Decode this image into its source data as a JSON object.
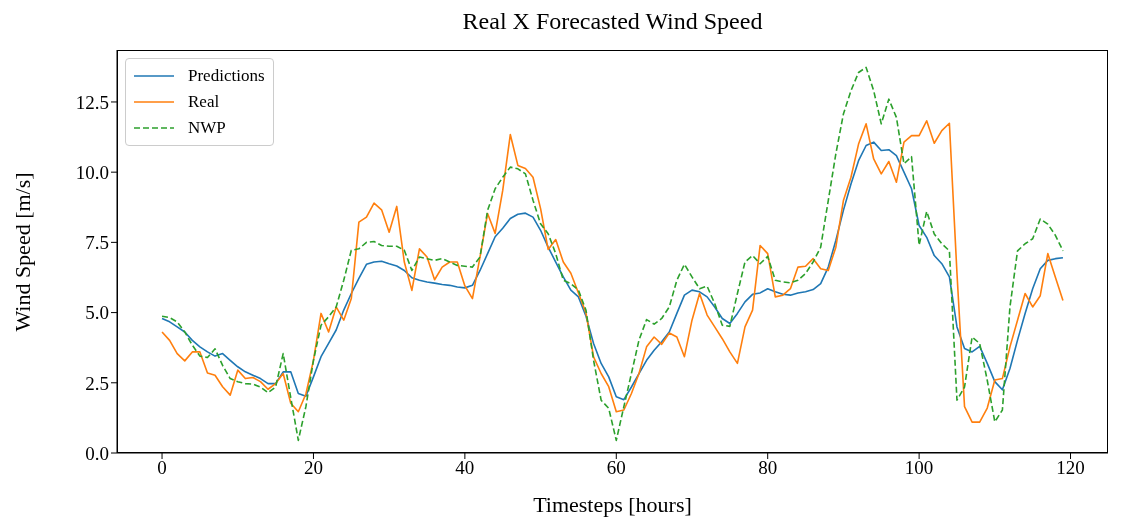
{
  "chart_data": {
    "type": "line",
    "title": "Real X Forecasted Wind Speed",
    "xlabel": "Timesteps [hours]",
    "ylabel": "Wind Speed [m/s]",
    "x": [
      0,
      1,
      2,
      3,
      4,
      5,
      6,
      7,
      8,
      9,
      10,
      11,
      12,
      13,
      14,
      15,
      16,
      17,
      18,
      19,
      20,
      21,
      22,
      23,
      24,
      25,
      26,
      27,
      28,
      29,
      30,
      31,
      32,
      33,
      34,
      35,
      36,
      37,
      38,
      39,
      40,
      41,
      42,
      43,
      44,
      45,
      46,
      47,
      48,
      49,
      50,
      51,
      52,
      53,
      54,
      55,
      56,
      57,
      58,
      59,
      60,
      61,
      62,
      63,
      64,
      65,
      66,
      67,
      68,
      69,
      70,
      71,
      72,
      73,
      74,
      75,
      76,
      77,
      78,
      79,
      80,
      81,
      82,
      83,
      84,
      85,
      86,
      87,
      88,
      89,
      90,
      91,
      92,
      93,
      94,
      95,
      96,
      97,
      98,
      99,
      100,
      101,
      102,
      103,
      104,
      105,
      106,
      107,
      108,
      109,
      110,
      111,
      112,
      113,
      114,
      115,
      116,
      117,
      118,
      119
    ],
    "series": [
      {
        "name": "Predictions",
        "color": "#1f77b4",
        "values": [
          4.79,
          4.67,
          4.49,
          4.31,
          4.01,
          3.78,
          3.6,
          3.45,
          3.54,
          3.3,
          3.07,
          2.89,
          2.77,
          2.65,
          2.47,
          2.47,
          2.89,
          2.89,
          2.12,
          2.02,
          2.71,
          3.43,
          3.9,
          4.38,
          5.09,
          5.68,
          6.22,
          6.72,
          6.8,
          6.83,
          6.74,
          6.66,
          6.5,
          6.24,
          6.15,
          6.09,
          6.05,
          6.0,
          5.97,
          5.91,
          5.88,
          5.97,
          6.5,
          7.1,
          7.7,
          8.0,
          8.35,
          8.5,
          8.54,
          8.4,
          7.93,
          7.33,
          6.8,
          6.27,
          5.8,
          5.56,
          4.87,
          3.9,
          3.19,
          2.71,
          2.0,
          1.9,
          2.35,
          2.83,
          3.3,
          3.66,
          3.96,
          4.31,
          4.97,
          5.62,
          5.8,
          5.74,
          5.56,
          5.2,
          4.79,
          4.61,
          4.97,
          5.38,
          5.65,
          5.7,
          5.85,
          5.74,
          5.65,
          5.62,
          5.7,
          5.74,
          5.82,
          6.03,
          6.62,
          7.57,
          8.64,
          9.58,
          10.41,
          10.95,
          11.07,
          10.77,
          10.8,
          10.59,
          10.0,
          9.41,
          8.1,
          7.68,
          7.03,
          6.74,
          6.27,
          4.49,
          3.72,
          3.6,
          3.8,
          3.19,
          2.54,
          2.25,
          3.01,
          4.02,
          4.97,
          5.85,
          6.56,
          6.86,
          6.92,
          6.95
        ]
      },
      {
        "name": "Real",
        "color": "#ff7f0e",
        "values": [
          4.31,
          4.01,
          3.54,
          3.28,
          3.6,
          3.6,
          2.85,
          2.77,
          2.36,
          2.06,
          2.95,
          2.65,
          2.69,
          2.54,
          2.27,
          2.47,
          2.83,
          1.77,
          1.47,
          2.1,
          3.3,
          4.97,
          4.31,
          5.2,
          4.73,
          5.5,
          8.22,
          8.4,
          8.9,
          8.66,
          7.86,
          8.78,
          6.8,
          5.79,
          7.27,
          6.98,
          6.17,
          6.62,
          6.8,
          6.8,
          5.95,
          5.5,
          6.98,
          8.53,
          7.82,
          9.35,
          11.34,
          10.24,
          10.13,
          9.82,
          8.7,
          7.25,
          7.6,
          6.8,
          6.4,
          5.7,
          4.98,
          3.42,
          2.83,
          2.36,
          1.47,
          1.53,
          2.12,
          2.83,
          3.78,
          4.13,
          3.87,
          4.27,
          4.13,
          3.43,
          4.73,
          5.68,
          4.91,
          4.49,
          4.07,
          3.6,
          3.19,
          4.49,
          5.09,
          7.39,
          7.1,
          5.56,
          5.62,
          5.85,
          6.62,
          6.65,
          6.92,
          6.56,
          6.5,
          7.33,
          8.99,
          9.82,
          11.0,
          11.72,
          10.47,
          9.94,
          10.38,
          9.64,
          11.07,
          11.3,
          11.3,
          11.83,
          11.03,
          11.48,
          11.74,
          6.4,
          1.65,
          1.1,
          1.1,
          1.6,
          2.6,
          2.65,
          3.78,
          4.73,
          5.68,
          5.2,
          5.6,
          7.1,
          6.26,
          5.43
        ]
      },
      {
        "name": "NWP",
        "color": "#2ca02c",
        "line_style": "dashed",
        "values": [
          4.87,
          4.82,
          4.67,
          4.31,
          3.84,
          3.45,
          3.4,
          3.71,
          3.12,
          2.65,
          2.54,
          2.47,
          2.45,
          2.35,
          2.15,
          2.35,
          3.54,
          1.97,
          0.45,
          1.65,
          3.3,
          4.55,
          4.85,
          5.2,
          6.15,
          7.22,
          7.27,
          7.5,
          7.53,
          7.39,
          7.36,
          7.36,
          7.22,
          6.5,
          6.98,
          6.92,
          6.86,
          6.92,
          6.8,
          6.68,
          6.65,
          6.62,
          6.98,
          8.64,
          9.41,
          9.82,
          10.18,
          10.12,
          9.94,
          9.0,
          8.16,
          7.81,
          7.1,
          6.15,
          6.03,
          5.8,
          5.08,
          3.3,
          1.88,
          1.59,
          0.45,
          1.65,
          2.83,
          4.02,
          4.75,
          4.59,
          4.79,
          5.2,
          6.15,
          6.72,
          6.27,
          5.85,
          5.94,
          5.32,
          4.55,
          4.51,
          5.68,
          6.8,
          7.03,
          6.74,
          7.0,
          6.15,
          6.09,
          6.06,
          6.15,
          6.39,
          6.8,
          7.33,
          8.99,
          10.65,
          12.07,
          12.9,
          13.55,
          13.73,
          12.9,
          11.72,
          12.6,
          11.95,
          10.3,
          10.55,
          7.4,
          8.6,
          7.8,
          7.45,
          7.2,
          1.88,
          2.35,
          4.13,
          3.9,
          2.59,
          1.11,
          1.53,
          5.2,
          7.2,
          7.45,
          7.63,
          8.33,
          8.15,
          7.75,
          7.2
        ]
      }
    ],
    "xlim": [
      -5.95,
      124.95
    ],
    "ylim": [
      0,
      14.35
    ],
    "xticks": [
      0,
      20,
      40,
      60,
      80,
      100,
      120
    ],
    "yticks": [
      {
        "value": 0,
        "label": "0.0"
      },
      {
        "value": 2.5,
        "label": "2.5"
      },
      {
        "value": 5,
        "label": "5.0"
      },
      {
        "value": 7.5,
        "label": "7.5"
      },
      {
        "value": 10,
        "label": "10.0"
      },
      {
        "value": 12.5,
        "label": "12.5"
      }
    ],
    "legend": "top left",
    "marker": "none",
    "line_style": "solid",
    "grid": false
  }
}
